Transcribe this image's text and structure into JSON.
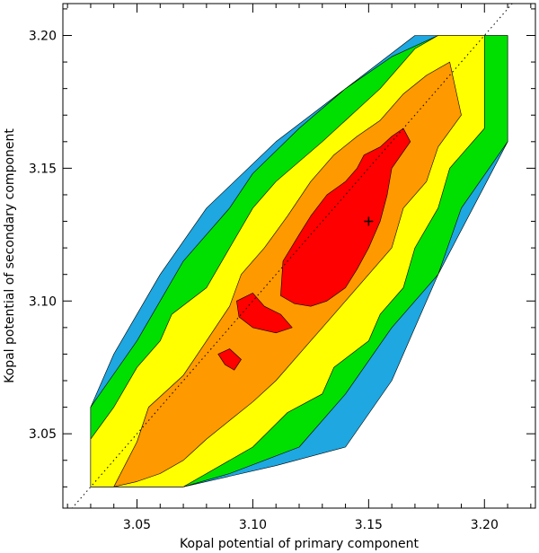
{
  "chart_data": {
    "type": "contour",
    "title": "",
    "xlabel": "Kopal potential of primary component",
    "ylabel": "Kopal potential of secondary component",
    "xlim": [
      3.018,
      3.222
    ],
    "ylim": [
      3.022,
      3.212
    ],
    "xticks": [
      3.05,
      3.1,
      3.15,
      3.2
    ],
    "yticks": [
      3.05,
      3.1,
      3.15,
      3.2
    ],
    "xtick_labels": [
      "3.05",
      "3.10",
      "3.15",
      "3.20"
    ],
    "ytick_labels": [
      "3.05",
      "3.10",
      "3.15",
      "3.20"
    ],
    "grid": false,
    "legend": "none",
    "reference_line": {
      "style": "dotted",
      "points": [
        [
          3.018,
          3.018
        ],
        [
          3.222,
          3.222
        ]
      ]
    },
    "best_fit_marker": {
      "x": 3.15,
      "y": 3.13,
      "symbol": "+"
    },
    "contour_levels": [
      {
        "color": "#1ea7e1",
        "polygon": [
          [
            3.03,
            3.03
          ],
          [
            3.03,
            3.06
          ],
          [
            3.04,
            3.08
          ],
          [
            3.06,
            3.11
          ],
          [
            3.08,
            3.135
          ],
          [
            3.11,
            3.16
          ],
          [
            3.14,
            3.18
          ],
          [
            3.17,
            3.2
          ],
          [
            3.21,
            3.2
          ],
          [
            3.21,
            3.16
          ],
          [
            3.18,
            3.11
          ],
          [
            3.16,
            3.07
          ],
          [
            3.14,
            3.045
          ],
          [
            3.11,
            3.038
          ],
          [
            3.07,
            3.03
          ]
        ]
      },
      {
        "color": "#00e000",
        "polygon": [
          [
            3.03,
            3.03
          ],
          [
            3.03,
            3.06
          ],
          [
            3.05,
            3.085
          ],
          [
            3.06,
            3.1
          ],
          [
            3.07,
            3.115
          ],
          [
            3.09,
            3.135
          ],
          [
            3.1,
            3.148
          ],
          [
            3.12,
            3.165
          ],
          [
            3.14,
            3.18
          ],
          [
            3.16,
            3.192
          ],
          [
            3.18,
            3.2
          ],
          [
            3.21,
            3.2
          ],
          [
            3.21,
            3.16
          ],
          [
            3.19,
            3.135
          ],
          [
            3.18,
            3.11
          ],
          [
            3.16,
            3.09
          ],
          [
            3.14,
            3.065
          ],
          [
            3.12,
            3.045
          ],
          [
            3.09,
            3.035
          ],
          [
            3.07,
            3.03
          ]
        ]
      },
      {
        "color": "#ffff00",
        "polygon": [
          [
            3.03,
            3.03
          ],
          [
            3.03,
            3.048
          ],
          [
            3.04,
            3.06
          ],
          [
            3.05,
            3.075
          ],
          [
            3.06,
            3.085
          ],
          [
            3.065,
            3.095
          ],
          [
            3.08,
            3.105
          ],
          [
            3.09,
            3.12
          ],
          [
            3.1,
            3.135
          ],
          [
            3.11,
            3.145
          ],
          [
            3.13,
            3.16
          ],
          [
            3.145,
            3.172
          ],
          [
            3.155,
            3.18
          ],
          [
            3.17,
            3.195
          ],
          [
            3.18,
            3.2
          ],
          [
            3.2,
            3.2
          ],
          [
            3.2,
            3.165
          ],
          [
            3.185,
            3.15
          ],
          [
            3.18,
            3.135
          ],
          [
            3.17,
            3.12
          ],
          [
            3.165,
            3.105
          ],
          [
            3.155,
            3.095
          ],
          [
            3.15,
            3.085
          ],
          [
            3.135,
            3.075
          ],
          [
            3.13,
            3.065
          ],
          [
            3.115,
            3.058
          ],
          [
            3.1,
            3.045
          ],
          [
            3.08,
            3.035
          ],
          [
            3.07,
            3.03
          ]
        ]
      },
      {
        "color": "#ff9900",
        "polygon": [
          [
            3.04,
            3.03
          ],
          [
            3.05,
            3.047
          ],
          [
            3.055,
            3.06
          ],
          [
            3.07,
            3.072
          ],
          [
            3.08,
            3.085
          ],
          [
            3.09,
            3.098
          ],
          [
            3.095,
            3.11
          ],
          [
            3.105,
            3.12
          ],
          [
            3.115,
            3.132
          ],
          [
            3.125,
            3.145
          ],
          [
            3.135,
            3.155
          ],
          [
            3.145,
            3.162
          ],
          [
            3.155,
            3.168
          ],
          [
            3.165,
            3.178
          ],
          [
            3.175,
            3.185
          ],
          [
            3.185,
            3.19
          ],
          [
            3.19,
            3.17
          ],
          [
            3.18,
            3.158
          ],
          [
            3.175,
            3.145
          ],
          [
            3.165,
            3.135
          ],
          [
            3.16,
            3.12
          ],
          [
            3.15,
            3.11
          ],
          [
            3.14,
            3.1
          ],
          [
            3.13,
            3.09
          ],
          [
            3.12,
            3.08
          ],
          [
            3.11,
            3.07
          ],
          [
            3.1,
            3.062
          ],
          [
            3.09,
            3.055
          ],
          [
            3.08,
            3.048
          ],
          [
            3.07,
            3.04
          ],
          [
            3.06,
            3.035
          ],
          [
            3.05,
            3.032
          ]
        ]
      },
      {
        "color": "#ff0000",
        "polygon": [
          [
            3.112,
            3.102
          ],
          [
            3.113,
            3.115
          ],
          [
            3.12,
            3.125
          ],
          [
            3.125,
            3.132
          ],
          [
            3.132,
            3.14
          ],
          [
            3.14,
            3.145
          ],
          [
            3.145,
            3.15
          ],
          [
            3.148,
            3.155
          ],
          [
            3.155,
            3.158
          ],
          [
            3.16,
            3.162
          ],
          [
            3.165,
            3.165
          ],
          [
            3.168,
            3.16
          ],
          [
            3.16,
            3.15
          ],
          [
            3.158,
            3.14
          ],
          [
            3.155,
            3.13
          ],
          [
            3.15,
            3.12
          ],
          [
            3.145,
            3.112
          ],
          [
            3.14,
            3.105
          ],
          [
            3.132,
            3.1
          ],
          [
            3.125,
            3.098
          ],
          [
            3.118,
            3.099
          ]
        ]
      },
      {
        "color": "#ff0000",
        "polygon": [
          [
            3.093,
            3.1
          ],
          [
            3.1,
            3.103
          ],
          [
            3.105,
            3.098
          ],
          [
            3.112,
            3.095
          ],
          [
            3.117,
            3.09
          ],
          [
            3.11,
            3.088
          ],
          [
            3.1,
            3.09
          ],
          [
            3.094,
            3.094
          ]
        ]
      },
      {
        "color": "#ff0000",
        "polygon": [
          [
            3.085,
            3.08
          ],
          [
            3.09,
            3.082
          ],
          [
            3.095,
            3.078
          ],
          [
            3.092,
            3.074
          ],
          [
            3.088,
            3.076
          ]
        ]
      }
    ]
  }
}
